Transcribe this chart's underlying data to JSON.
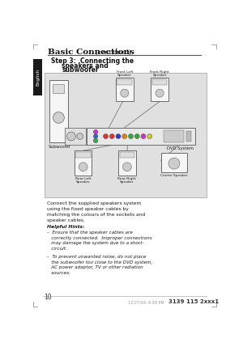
{
  "page_bg": "#ffffff",
  "title_bold": "Basic Connections",
  "title_normal": " (continued)",
  "diagram_bg": "#e0e0e0",
  "body_text": "Connect the supplied speakers system\nusing the fixed speaker cables by\nmatching the colours of the sockets and\nspeaker cables.",
  "hints_title": "Helpful Hints:",
  "hint1": "–  Ensure that the speaker cables are\n   correctly connected.  Improper connections\n   may damage the system due to a short-\n   circuit.",
  "hint2": "–  To prevent unwanted noise, do not place\n   the subwoofer too close to the DVD system,\n   AC power adaptor, TV or other radiation\n   sources.",
  "page_num": "10",
  "footer_left": "12/27/04, 6:28 PM",
  "footer_right": "3139 115 2xxx1",
  "tab_color": "#1a1a1a",
  "tab_text": "English",
  "step_line1": "Step 3:  Connecting the",
  "step_line2": "speakers and",
  "step_line3": "subwoofer",
  "label_front_left": "Front Left\nSpeaker",
  "label_front_right": "Front Right\nSpeaker",
  "label_subwoofer": "Subwoofer",
  "label_dvd": "DVD System",
  "label_rear_left": "Rear Left\nSpeaker",
  "label_rear_right": "Rear Right\nSpeaker",
  "label_centre": "Centre Speaker",
  "connector_colors": [
    "#dd3333",
    "#dd3333",
    "#3333cc",
    "#dd8800",
    "#33aa33",
    "#33aa33",
    "#cc33cc",
    "#cccc33"
  ],
  "cluster_colors": [
    "#cc33cc",
    "#3366cc",
    "#33aa44"
  ]
}
